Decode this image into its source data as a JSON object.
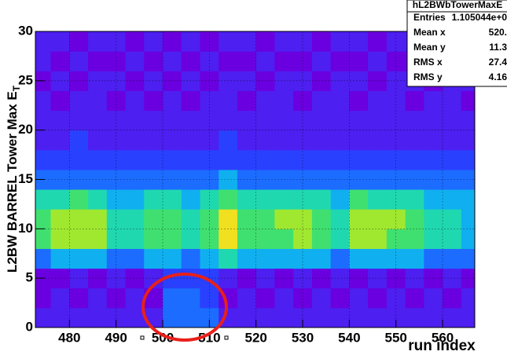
{
  "chart_data": {
    "type": "heatmap",
    "xlabel": "run index",
    "ylabel": "L2BW BARREL Tower Max E",
    "ylabel_sub": "T",
    "xlim": [
      472.7,
      566.9
    ],
    "ylim": [
      0,
      30
    ],
    "xticks": [
      480,
      490,
      500,
      510,
      520,
      530,
      540,
      550,
      560
    ],
    "yticks": [
      0,
      5,
      10,
      15,
      20,
      25,
      30
    ],
    "grid": true,
    "xbins": [
      472,
      476,
      480,
      484,
      488,
      492,
      496,
      500,
      504,
      508,
      512,
      516,
      520,
      524,
      528,
      532,
      536,
      540,
      544,
      548,
      552,
      556,
      560,
      564,
      568
    ],
    "ybins": [
      0,
      2,
      4,
      6,
      8,
      10,
      12,
      14,
      16,
      18,
      20,
      22,
      24,
      26,
      28,
      30
    ],
    "palette": [
      "#ffffff",
      "#6a00e0",
      "#4d1ff0",
      "#2a40ff",
      "#1c6cff",
      "#10b0f0",
      "#20d8b0",
      "#40e070",
      "#a0e830",
      "#f0e020",
      "#ff3010"
    ],
    "z": [
      [
        2,
        2,
        2,
        2,
        2,
        2,
        2,
        4,
        4,
        4,
        2,
        2,
        2,
        2,
        2,
        2,
        2,
        2,
        2,
        2,
        2,
        2,
        2,
        2
      ],
      [
        1,
        2,
        1,
        2,
        1,
        2,
        1,
        4,
        4,
        3,
        1,
        2,
        1,
        2,
        1,
        2,
        1,
        2,
        1,
        2,
        1,
        2,
        1,
        2
      ],
      [
        1,
        1,
        2,
        1,
        2,
        1,
        2,
        3,
        3,
        3,
        2,
        1,
        2,
        1,
        2,
        1,
        2,
        1,
        2,
        1,
        2,
        1,
        2,
        1
      ],
      [
        4,
        5,
        5,
        5,
        4,
        4,
        5,
        5,
        4,
        5,
        6,
        5,
        5,
        5,
        5,
        5,
        4,
        5,
        5,
        5,
        5,
        4,
        4,
        4
      ],
      [
        7,
        8,
        8,
        8,
        6,
        6,
        7,
        7,
        6,
        7,
        9,
        7,
        7,
        7,
        8,
        7,
        6,
        8,
        8,
        7,
        7,
        6,
        6,
        5
      ],
      [
        7,
        8,
        8,
        8,
        6,
        6,
        7,
        7,
        6,
        7,
        9,
        7,
        7,
        8,
        8,
        7,
        6,
        8,
        8,
        8,
        7,
        6,
        6,
        5
      ],
      [
        6,
        6,
        7,
        6,
        5,
        5,
        6,
        6,
        5,
        6,
        7,
        6,
        6,
        6,
        6,
        6,
        5,
        7,
        6,
        6,
        6,
        5,
        5,
        5
      ],
      [
        4,
        4,
        4,
        4,
        4,
        4,
        4,
        4,
        4,
        4,
        5,
        4,
        4,
        4,
        4,
        4,
        4,
        4,
        4,
        4,
        4,
        4,
        4,
        4
      ],
      [
        3,
        3,
        3,
        3,
        3,
        3,
        3,
        3,
        3,
        3,
        3,
        3,
        3,
        3,
        3,
        3,
        3,
        3,
        3,
        3,
        3,
        3,
        3,
        3
      ],
      [
        2,
        2,
        3,
        2,
        2,
        2,
        2,
        2,
        2,
        2,
        3,
        2,
        2,
        2,
        2,
        2,
        2,
        2,
        2,
        2,
        2,
        2,
        2,
        2
      ],
      [
        2,
        2,
        2,
        2,
        2,
        2,
        2,
        2,
        2,
        2,
        2,
        2,
        2,
        2,
        2,
        2,
        2,
        2,
        2,
        2,
        2,
        2,
        2,
        2
      ],
      [
        2,
        1,
        2,
        2,
        1,
        2,
        1,
        2,
        1,
        2,
        2,
        1,
        2,
        2,
        1,
        2,
        2,
        1,
        2,
        2,
        1,
        2,
        2,
        1
      ],
      [
        1,
        2,
        1,
        2,
        2,
        1,
        2,
        1,
        2,
        1,
        2,
        2,
        1,
        2,
        2,
        1,
        2,
        2,
        1,
        2,
        2,
        1,
        2,
        2
      ],
      [
        2,
        1,
        2,
        1,
        1,
        2,
        1,
        2,
        1,
        2,
        1,
        1,
        2,
        1,
        1,
        2,
        1,
        1,
        2,
        1,
        1,
        2,
        1,
        1
      ],
      [
        2,
        2,
        1,
        2,
        2,
        1,
        2,
        1,
        2,
        1,
        2,
        2,
        1,
        2,
        2,
        1,
        2,
        2,
        1,
        2,
        2,
        1,
        2,
        2
      ]
    ],
    "stats": {
      "title": "hL2BWbTowerMaxE",
      "rows": [
        [
          "Entries",
          "1.105044e+0"
        ],
        [
          "Mean x",
          "520."
        ],
        [
          "Mean y",
          "11.3"
        ],
        [
          "RMS x",
          "27.4"
        ],
        [
          "RMS y",
          "4.16"
        ]
      ]
    }
  }
}
